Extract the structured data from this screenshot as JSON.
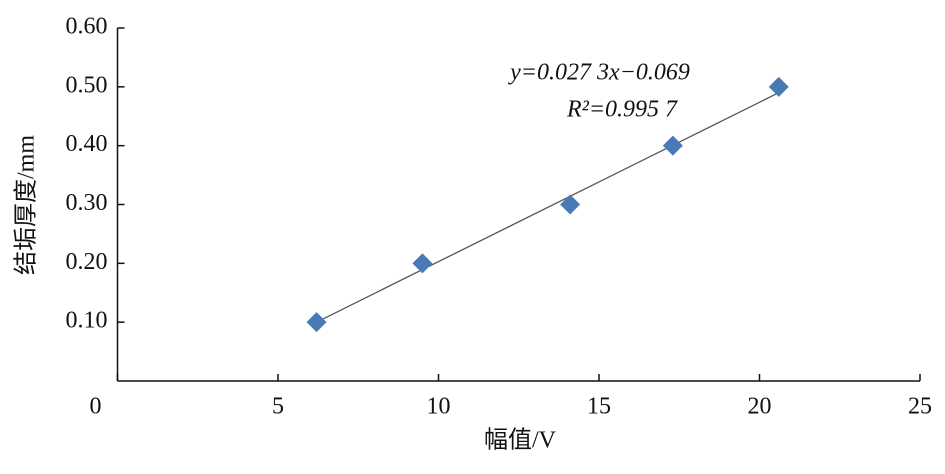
{
  "chart_data": {
    "type": "scatter",
    "x_label": "幅值/V",
    "y_label": "结垢厚度/mm",
    "annotations": [
      "y=0.027 3x−0.069",
      "R²=0.995 7"
    ],
    "series": [
      {
        "color": "#4a7ab5",
        "x": [
          6.2,
          9.5,
          14.1,
          17.3,
          20.6
        ],
        "values": [
          0.1,
          0.2,
          0.3,
          0.4,
          0.5
        ]
      }
    ],
    "trendline": {
      "color": "#555555",
      "x": [
        6.2,
        20.6
      ],
      "values": [
        0.1,
        0.49
      ]
    },
    "xlim": [
      0,
      25
    ],
    "xticks": [
      0,
      5,
      10,
      15,
      20,
      25
    ],
    "ylim": [
      0,
      0.6
    ],
    "yticks": [
      {
        "value": 0.1,
        "label": "0.10"
      },
      {
        "value": 0.2,
        "label": "0.20"
      },
      {
        "value": 0.3,
        "label": "0.30"
      },
      {
        "value": 0.4,
        "label": "0.40"
      },
      {
        "value": 0.5,
        "label": "0.50"
      },
      {
        "value": 0.6,
        "label": "0.60"
      }
    ]
  }
}
